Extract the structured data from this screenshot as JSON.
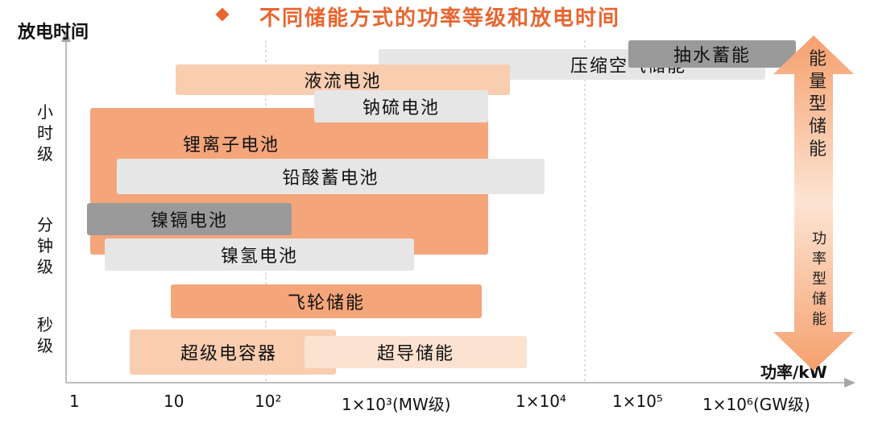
{
  "title": "不同储能方式的功率等级和放电时间",
  "y_axis_title": "放电时间",
  "x_axis_title": "功率/kW",
  "y_labels": {
    "hours": "小时级",
    "minutes": "分钟级",
    "seconds": "秒级"
  },
  "x_ticks": [
    "1",
    "10",
    "10²",
    "1×10³(MW级)",
    "1×10⁴",
    "1×10⁵",
    "1×10⁶(GW级)"
  ],
  "bars": {
    "pumped_hydro": "抽水蓄能",
    "compressed_air": "压缩空气储能",
    "flow_battery": "液流电池",
    "sodium_sulfur": "钠硫电池",
    "lithium_ion": "锂离子电池",
    "lead_acid": "铅酸蓄电池",
    "nickel_cadmium": "镍镉电池",
    "nickel_hydrogen": "镍氢电池",
    "flywheel": "飞轮储能",
    "supercapacitor": "超级电容器",
    "superconducting": "超导储能"
  },
  "arrow": {
    "top_label": "能量型储能",
    "bottom_label": "功率型储能"
  },
  "colors": {
    "accent": "#E8652F",
    "orange_strong": "#F4A57A",
    "orange_light": "#F9CDB0",
    "peach_pale": "#FCE2D1",
    "gray_light": "#E6E6E6",
    "gray_dark": "#9A9A9A",
    "axis": "#A6A6A6"
  }
}
